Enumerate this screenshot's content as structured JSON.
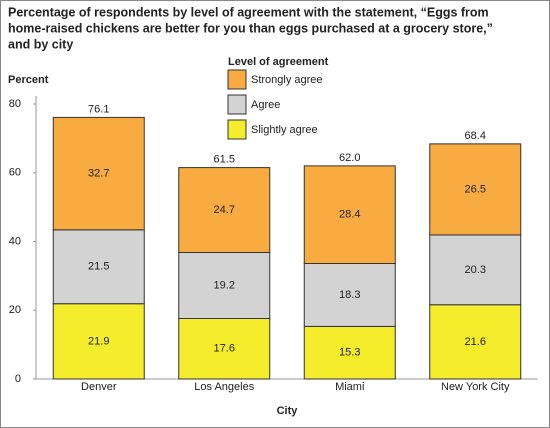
{
  "chart_data": {
    "type": "stacked-bar",
    "title": [
      "Percentage of respondents by level of agreement with the statement, “Eggs from",
      "home-raised chickens are better for you than eggs purchased at a grocery store,”",
      "and by city"
    ],
    "y_label": "Percent",
    "x_label": "City",
    "legend_title": "Level of agreement",
    "categories": [
      "Denver",
      "Los Angeles",
      "Miami",
      "New York City"
    ],
    "series": [
      {
        "name": "Slightly agree",
        "color": "#f5ec2b",
        "values": [
          21.9,
          17.6,
          15.3,
          21.6
        ]
      },
      {
        "name": "Agree",
        "color": "#d3d3d3",
        "values": [
          21.5,
          19.2,
          18.3,
          20.3
        ]
      },
      {
        "name": "Strongly agree",
        "color": "#f8ab40",
        "values": [
          32.7,
          24.7,
          28.4,
          26.5
        ]
      }
    ],
    "totals": {
      "values": [
        76.1,
        61.5,
        62,
        68.4
      ],
      "value_labels": [
        "76.1",
        "61.5",
        "62.0",
        "68.4"
      ]
    },
    "ylim": [
      0,
      80
    ],
    "yticks": [
      0,
      20,
      40,
      60,
      80
    ]
  }
}
